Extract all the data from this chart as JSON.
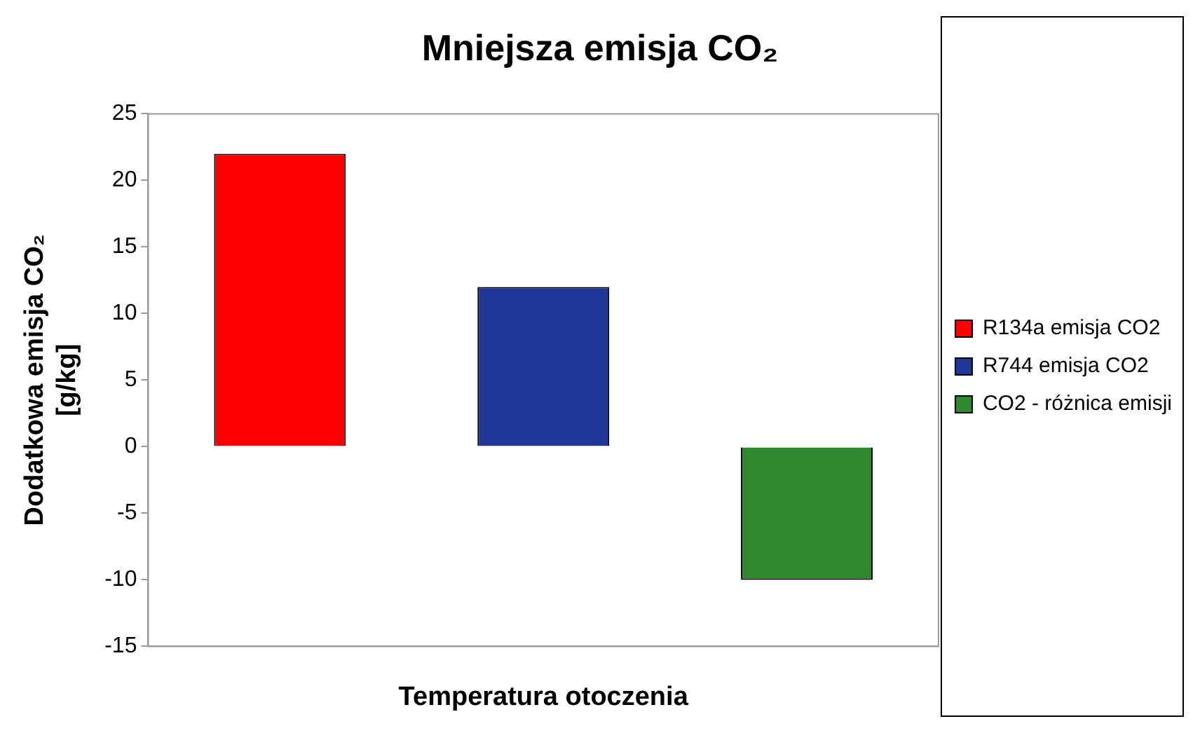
{
  "chart_data": {
    "type": "bar",
    "title": "Mniejsza emisja CO₂",
    "xlabel": "Temperatura otoczenia",
    "ylabel": "Dodatkowa emisja CO₂\n[g/kg]",
    "categories": [
      null
    ],
    "series": [
      {
        "name": "R134a emisja CO2",
        "color": "#ff0000",
        "values": [
          22
        ]
      },
      {
        "name": "R744 emisja CO2",
        "color": "#1f3796",
        "values": [
          12
        ]
      },
      {
        "name": "CO2 - różnica emisji",
        "color": "#2e892e",
        "values": [
          -10
        ]
      }
    ],
    "ylim": [
      -15,
      25
    ],
    "yticks": [
      -15,
      -10,
      -5,
      0,
      5,
      10,
      15,
      20,
      25
    ],
    "grid": false,
    "legend": "right"
  }
}
